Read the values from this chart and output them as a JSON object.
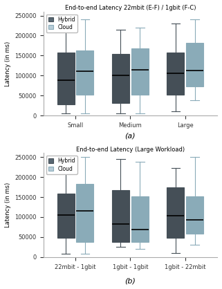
{
  "title_a": "End-to-end Latency 22mbit (E-F) / 1gbit (F-C)",
  "title_b": "End-to-end Latency (Large Workload)",
  "label_a": "(a)",
  "label_b": "(b)",
  "ylabel": "Latency (in ms)",
  "hybrid_color": "#596873",
  "cloud_color": "#b8cdd8",
  "hybrid_edge": "#454f57",
  "cloud_edge": "#8aabb8",
  "legend_labels": [
    "Hybrid",
    "Cloud"
  ],
  "ax1_categories": [
    "Small",
    "Medium",
    "Large"
  ],
  "ax1_hybrid": [
    {
      "whislo": 5000,
      "q1": 28000,
      "med": 88000,
      "q3": 158000,
      "whishi": 230000
    },
    {
      "whislo": 5000,
      "q1": 32000,
      "med": 100000,
      "q3": 154000,
      "whishi": 215000
    },
    {
      "whislo": 10000,
      "q1": 52000,
      "med": 105000,
      "q3": 158000,
      "whishi": 230000
    }
  ],
  "ax1_cloud": [
    {
      "whislo": 5000,
      "q1": 52000,
      "med": 110000,
      "q3": 162000,
      "whishi": 240000
    },
    {
      "whislo": 5000,
      "q1": 52000,
      "med": 115000,
      "q3": 168000,
      "whishi": 220000
    },
    {
      "whislo": 38000,
      "q1": 73000,
      "med": 113000,
      "q3": 182000,
      "whishi": 240000
    }
  ],
  "ax2_categories": [
    "22mbit - 1gbit",
    "1gbit - 1gbit",
    "1gbit - 22mbit"
  ],
  "ax2_hybrid": [
    {
      "whislo": 8000,
      "q1": 48000,
      "med": 105000,
      "q3": 158000,
      "whishi": 250000
    },
    {
      "whislo": 25000,
      "q1": 38000,
      "med": 83000,
      "q3": 168000,
      "whishi": 245000
    },
    {
      "whislo": 10000,
      "q1": 48000,
      "med": 103000,
      "q3": 175000,
      "whishi": 222000
    }
  ],
  "ax2_cloud": [
    {
      "whislo": 8000,
      "q1": 38000,
      "med": 115000,
      "q3": 183000,
      "whishi": 250000
    },
    {
      "whislo": 20000,
      "q1": 38000,
      "med": 68000,
      "q3": 152000,
      "whishi": 238000
    },
    {
      "whislo": 30000,
      "q1": 58000,
      "med": 93000,
      "q3": 152000,
      "whishi": 250000
    }
  ],
  "ylim": [
    0,
    260000
  ],
  "yticks": [
    0,
    50000,
    100000,
    150000,
    200000,
    250000
  ]
}
